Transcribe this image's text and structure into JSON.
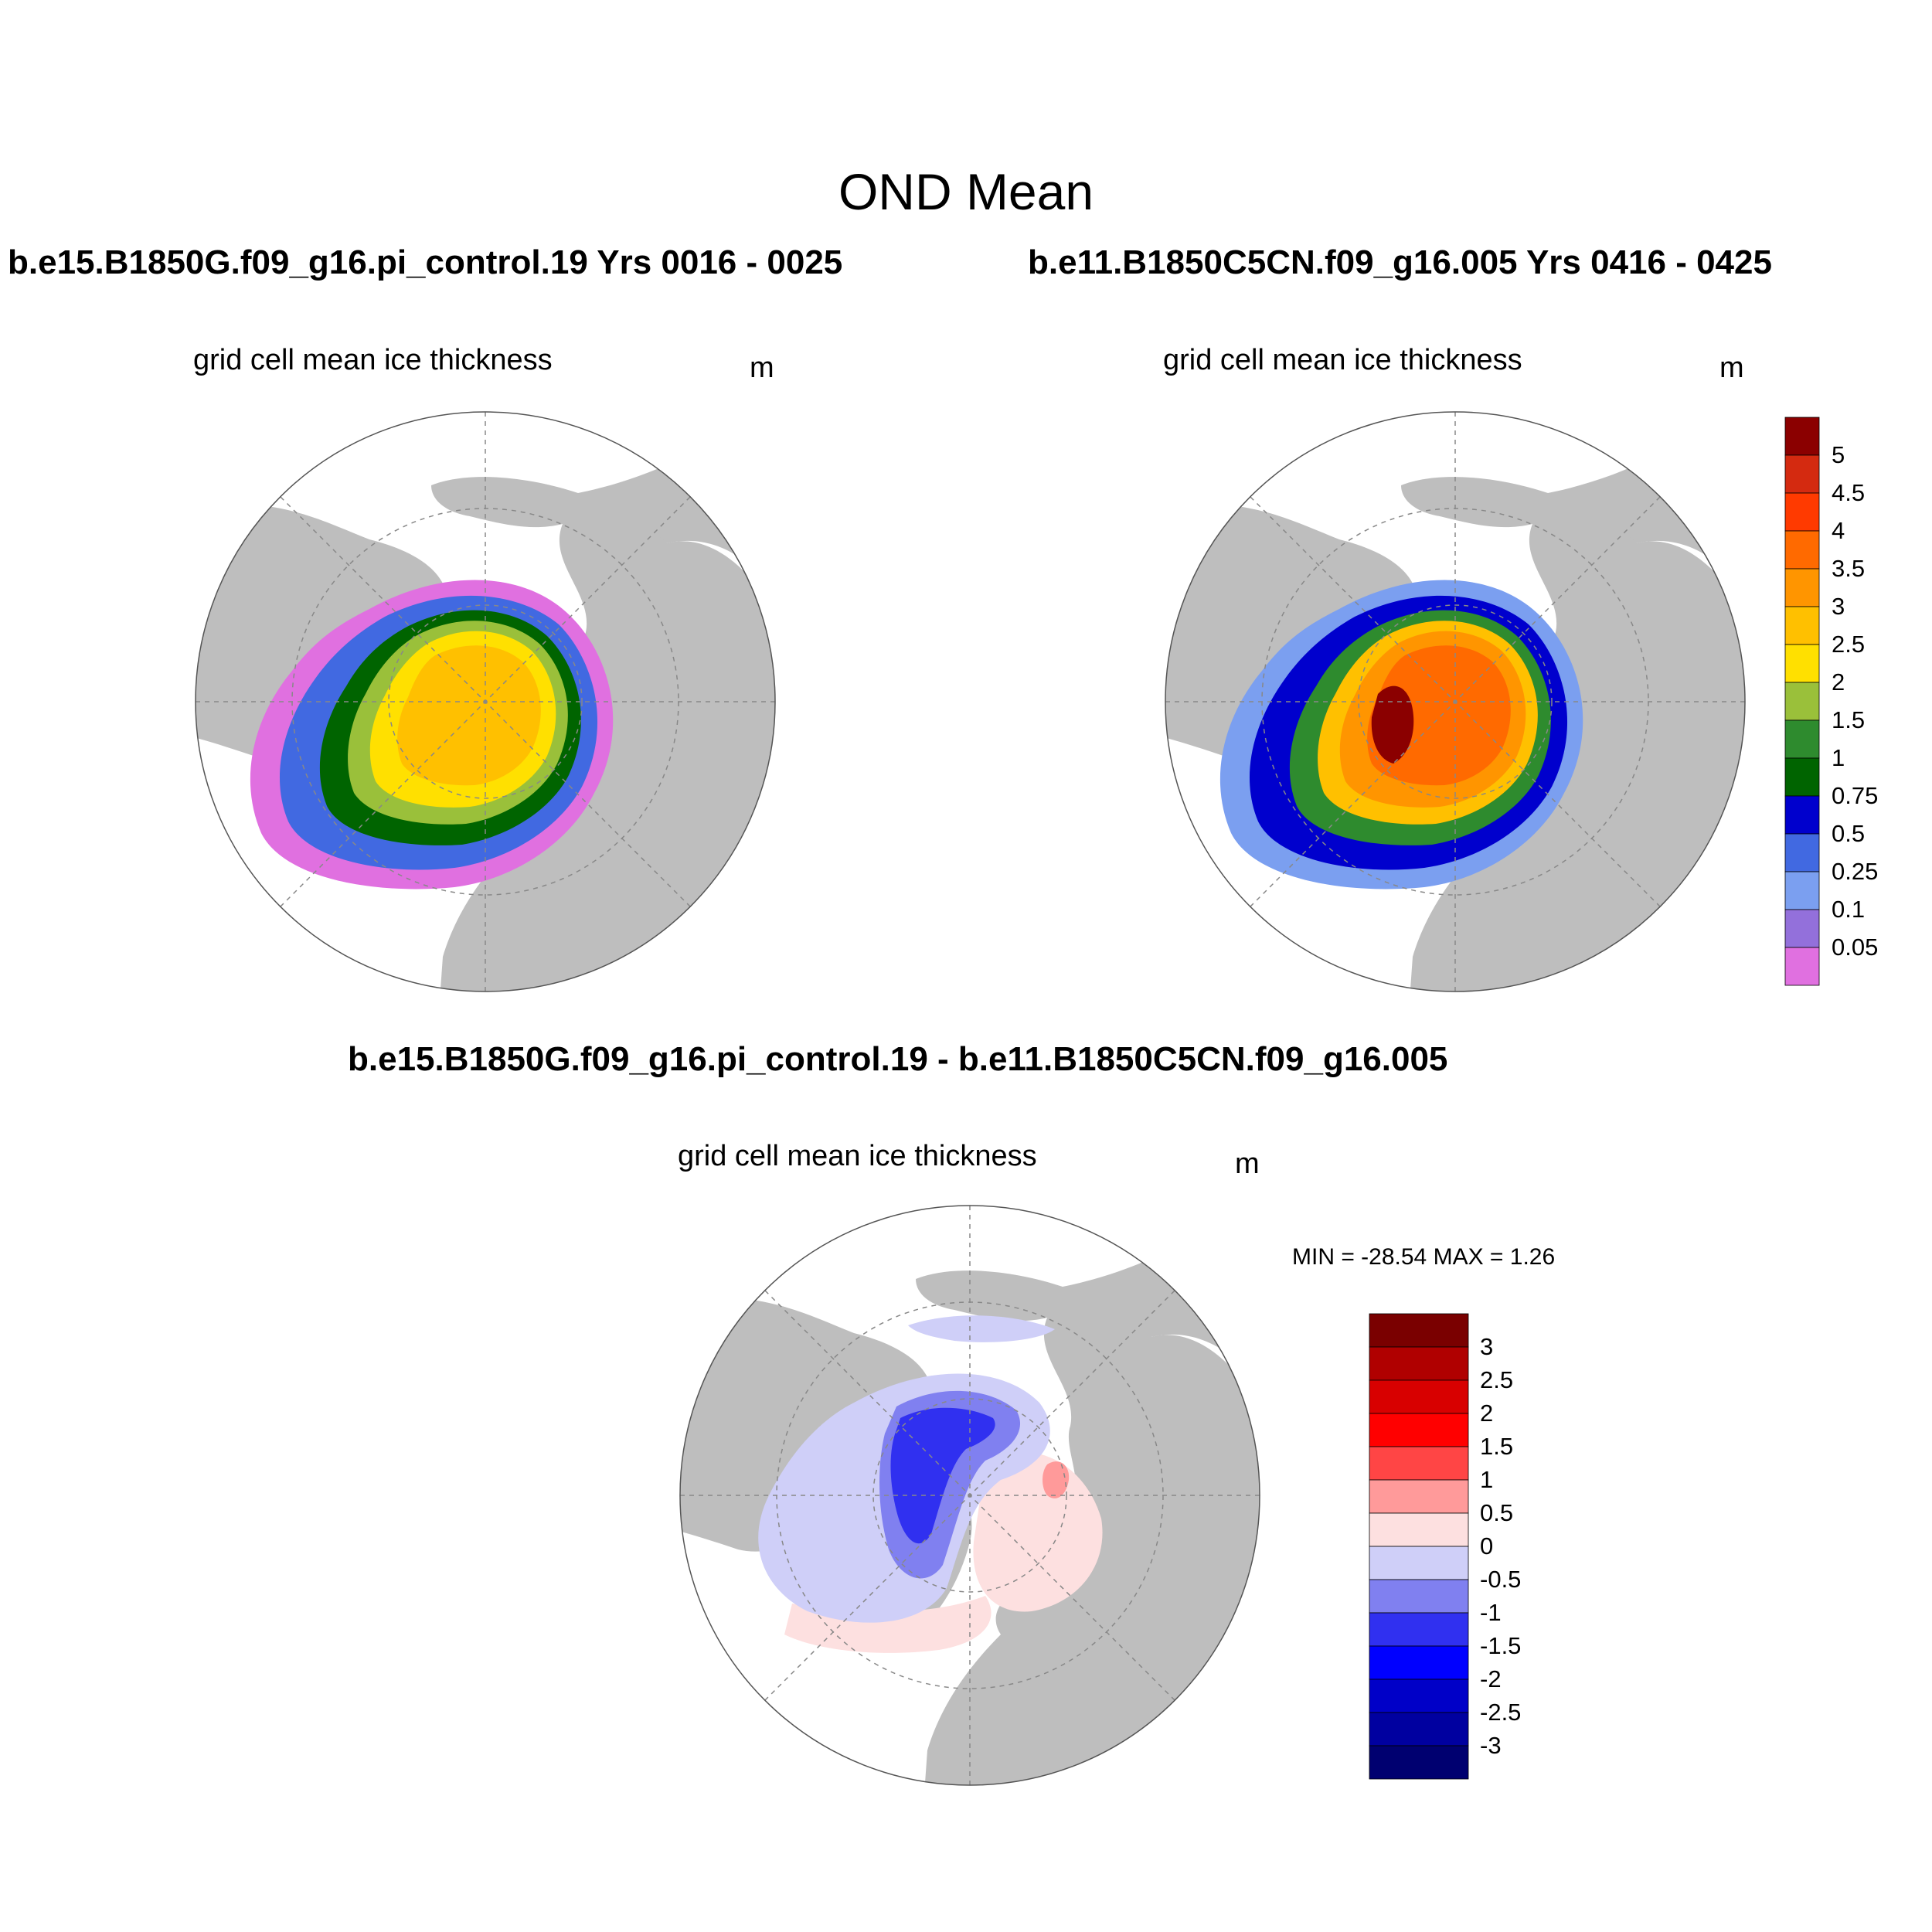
{
  "figure": {
    "title": "OND Mean",
    "variable": "grid cell mean ice thickness",
    "units": "m"
  },
  "panels": {
    "top_left": {
      "run_title": "b.e15.B1850G.f09_g16.pi_control.19  Yrs 0016 - 0025",
      "variable": "grid cell mean ice thickness",
      "units": "m"
    },
    "top_right": {
      "run_title": "b.e11.B1850C5CN.f09_g16.005  Yrs 0416 - 0425",
      "variable": "grid cell mean ice thickness",
      "units": "m"
    },
    "bottom": {
      "run_title": "b.e15.B1850G.f09_g16.pi_control.19 - b.e11.B1850C5CN.f09_g16.005",
      "variable": "grid cell mean ice thickness",
      "units": "m",
      "minmax": "MIN = -28.54 MAX =   1.26"
    }
  },
  "colorbar_top": {
    "labels": [
      "5",
      "4.5",
      "4",
      "3.5",
      "3",
      "2.5",
      "2",
      "1.5",
      "1",
      "0.75",
      "0.5",
      "0.25",
      "0.1",
      "0.05"
    ],
    "colors": [
      "#8b0000",
      "#d42a10",
      "#ff3a00",
      "#ff6a00",
      "#ff9500",
      "#ffc000",
      "#ffe000",
      "#9ac03a",
      "#2e8b2e",
      "#006400",
      "#0000cd",
      "#4169e1",
      "#7b9ff0",
      "#9370db",
      "#e070e0"
    ]
  },
  "colorbar_diff": {
    "labels": [
      "3",
      "2.5",
      "2",
      "1.5",
      "1",
      "0.5",
      "0",
      "-0.5",
      "-1",
      "-1.5",
      "-2",
      "-2.5",
      "-3"
    ],
    "colors": [
      "#7a0000",
      "#b00000",
      "#d80000",
      "#ff0000",
      "#ff4545",
      "#ff9a9a",
      "#fde0e0",
      "#cfcff8",
      "#8080f0",
      "#3030f0",
      "#0000ff",
      "#0000c8",
      "#0000a0",
      "#000070"
    ]
  },
  "colors": {
    "land": "#bebebe",
    "ocean": "#ffffff",
    "grid": "#888888"
  }
}
